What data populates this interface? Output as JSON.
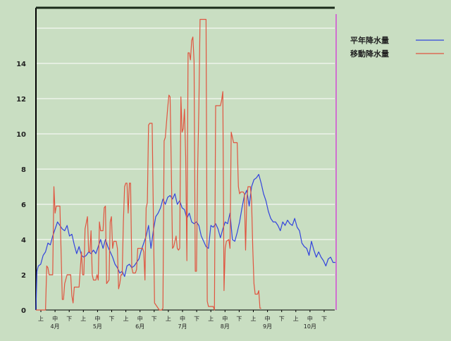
{
  "chart_data": {
    "type": "line",
    "title": "",
    "xlabel": "",
    "ylabel": "",
    "ylim": [
      0,
      16
    ],
    "grid": true,
    "legend_position": "top-right",
    "x_tick_labels": [
      "上",
      "中",
      "下",
      "上",
      "中",
      "下",
      "上",
      "中",
      "下",
      "上",
      "中",
      "下",
      "上",
      "中",
      "下",
      "上",
      "中",
      "下",
      "上",
      "中",
      "下"
    ],
    "month_labels": [
      "4月",
      "5月",
      "6月",
      "7月",
      "8月",
      "9月",
      "10月"
    ],
    "y_tick_labels": [
      "0",
      "2",
      "4",
      "6",
      "8",
      "10",
      "12",
      "14"
    ],
    "colors": {
      "background": "#c9dec2",
      "grid": "#ffffff",
      "axis": "#000000",
      "current_marker": "#d070d0"
    },
    "series": [
      {
        "name": "平年降水量",
        "color": "#3344dd",
        "points": [
          [
            0,
            0
          ],
          [
            0.8,
            2.2
          ],
          [
            2,
            2.5
          ],
          [
            4,
            2.6
          ],
          [
            6,
            3.1
          ],
          [
            8,
            3.3
          ],
          [
            10,
            3.8
          ],
          [
            12,
            3.7
          ],
          [
            14,
            4.2
          ],
          [
            16,
            4.6
          ],
          [
            18,
            5.0
          ],
          [
            20,
            4.8
          ],
          [
            22,
            4.6
          ],
          [
            24,
            4.5
          ],
          [
            26,
            4.8
          ],
          [
            28,
            4.2
          ],
          [
            30,
            4.3
          ],
          [
            32,
            3.7
          ],
          [
            34,
            3.2
          ],
          [
            36,
            3.6
          ],
          [
            38,
            3.1
          ],
          [
            40,
            3.0
          ],
          [
            42,
            3.1
          ],
          [
            44,
            3.3
          ],
          [
            46,
            3.2
          ],
          [
            48,
            3.4
          ],
          [
            50,
            3.2
          ],
          [
            52,
            3.6
          ],
          [
            54,
            4.0
          ],
          [
            56,
            3.5
          ],
          [
            58,
            4.0
          ],
          [
            60,
            3.6
          ],
          [
            62,
            3.3
          ],
          [
            64,
            3.0
          ],
          [
            66,
            2.6
          ],
          [
            68,
            2.4
          ],
          [
            70,
            2.1
          ],
          [
            72,
            2.2
          ],
          [
            74,
            1.9
          ],
          [
            76,
            2.5
          ],
          [
            78,
            2.6
          ],
          [
            80,
            2.4
          ],
          [
            82,
            2.5
          ],
          [
            84,
            2.7
          ],
          [
            86,
            2.9
          ],
          [
            88,
            3.4
          ],
          [
            90,
            3.8
          ],
          [
            92,
            4.2
          ],
          [
            94,
            4.8
          ],
          [
            96,
            3.5
          ],
          [
            98,
            4.5
          ],
          [
            100,
            5.3
          ],
          [
            102,
            5.5
          ],
          [
            104,
            5.8
          ],
          [
            106,
            6.3
          ],
          [
            108,
            6.0
          ],
          [
            110,
            6.4
          ],
          [
            112,
            6.5
          ],
          [
            114,
            6.3
          ],
          [
            116,
            6.6
          ],
          [
            118,
            6.0
          ],
          [
            120,
            6.2
          ],
          [
            122,
            5.8
          ],
          [
            124,
            5.7
          ],
          [
            126,
            5.2
          ],
          [
            128,
            5.5
          ],
          [
            130,
            5.0
          ],
          [
            132,
            4.9
          ],
          [
            134,
            5.0
          ],
          [
            136,
            4.8
          ],
          [
            138,
            4.2
          ],
          [
            140,
            3.9
          ],
          [
            142,
            3.6
          ],
          [
            144,
            3.5
          ],
          [
            146,
            4.8
          ],
          [
            148,
            4.7
          ],
          [
            150,
            4.9
          ],
          [
            152,
            4.6
          ],
          [
            154,
            4.1
          ],
          [
            156,
            4.6
          ],
          [
            158,
            5.0
          ],
          [
            160,
            4.9
          ],
          [
            162,
            5.5
          ],
          [
            164,
            4.0
          ],
          [
            166,
            3.9
          ],
          [
            168,
            4.4
          ],
          [
            170,
            5.0
          ],
          [
            172,
            5.8
          ],
          [
            174,
            6.5
          ],
          [
            176,
            6.8
          ],
          [
            178,
            5.9
          ],
          [
            180,
            7.0
          ],
          [
            182,
            7.4
          ],
          [
            184,
            7.5
          ],
          [
            186,
            7.7
          ],
          [
            188,
            7.2
          ],
          [
            190,
            6.6
          ],
          [
            192,
            6.2
          ],
          [
            194,
            5.6
          ],
          [
            196,
            5.2
          ],
          [
            198,
            5.0
          ],
          [
            200,
            5.0
          ],
          [
            202,
            4.8
          ],
          [
            204,
            4.5
          ],
          [
            206,
            5.0
          ],
          [
            208,
            4.8
          ],
          [
            210,
            5.1
          ],
          [
            212,
            4.9
          ],
          [
            214,
            4.8
          ],
          [
            216,
            5.2
          ],
          [
            218,
            4.7
          ],
          [
            220,
            4.5
          ],
          [
            222,
            3.8
          ],
          [
            224,
            3.6
          ],
          [
            226,
            3.5
          ],
          [
            228,
            3.1
          ],
          [
            230,
            3.9
          ],
          [
            232,
            3.4
          ],
          [
            234,
            3.0
          ],
          [
            236,
            3.3
          ],
          [
            238,
            3.0
          ],
          [
            240,
            2.8
          ],
          [
            242,
            2.5
          ],
          [
            244,
            2.9
          ],
          [
            246,
            3.0
          ],
          [
            248,
            2.7
          ],
          [
            250,
            2.7
          ]
        ]
      },
      {
        "name": "移動降水量",
        "color": "#e05540",
        "points": [
          [
            0,
            0
          ],
          [
            4,
            0
          ],
          [
            8,
            0
          ],
          [
            9,
            2.5
          ],
          [
            10,
            2.4
          ],
          [
            11,
            2.0
          ],
          [
            12,
            2.0
          ],
          [
            14,
            2.0
          ],
          [
            15,
            7.0
          ],
          [
            16,
            5.5
          ],
          [
            17,
            5.9
          ],
          [
            20,
            5.9
          ],
          [
            21,
            3.3
          ],
          [
            22,
            0.6
          ],
          [
            23,
            0.6
          ],
          [
            24,
            1.5
          ],
          [
            26,
            2.0
          ],
          [
            29,
            2.0
          ],
          [
            30,
            0.8
          ],
          [
            31,
            0.4
          ],
          [
            32,
            1.3
          ],
          [
            35,
            1.3
          ],
          [
            36,
            1.3
          ],
          [
            38,
            3.3
          ],
          [
            39,
            2.0
          ],
          [
            40,
            2.0
          ],
          [
            41,
            4.6
          ],
          [
            43,
            5.3
          ],
          [
            44,
            3.3
          ],
          [
            45,
            3.3
          ],
          [
            46,
            4.5
          ],
          [
            47,
            2.0
          ],
          [
            48,
            1.7
          ],
          [
            50,
            1.7
          ],
          [
            51,
            2.0
          ],
          [
            52,
            1.7
          ],
          [
            53,
            5.0
          ],
          [
            54,
            4.5
          ],
          [
            56,
            4.5
          ],
          [
            57,
            5.8
          ],
          [
            58,
            5.9
          ],
          [
            59,
            1.5
          ],
          [
            61,
            1.7
          ],
          [
            62,
            5.0
          ],
          [
            63,
            5.3
          ],
          [
            64,
            3.5
          ],
          [
            65,
            3.9
          ],
          [
            67,
            3.9
          ],
          [
            68,
            3.5
          ],
          [
            69,
            1.2
          ],
          [
            70,
            1.5
          ],
          [
            71,
            2.0
          ],
          [
            72,
            2.0
          ],
          [
            73,
            5.0
          ],
          [
            74,
            7.0
          ],
          [
            75,
            7.2
          ],
          [
            76,
            7.2
          ],
          [
            77,
            5.5
          ],
          [
            78,
            7.2
          ],
          [
            79,
            7.2
          ],
          [
            80,
            2.4
          ],
          [
            81,
            2.1
          ],
          [
            83,
            2.1
          ],
          [
            84,
            2.3
          ],
          [
            85,
            3.5
          ],
          [
            87,
            3.5
          ],
          [
            89,
            3.5
          ],
          [
            90,
            3.3
          ],
          [
            91,
            1.7
          ],
          [
            92,
            5.8
          ],
          [
            93,
            6.1
          ],
          [
            94,
            10.5
          ],
          [
            95,
            10.6
          ],
          [
            97,
            10.6
          ],
          [
            98,
            5.5
          ],
          [
            99,
            0.4
          ],
          [
            100,
            0.3
          ],
          [
            101,
            0.2
          ],
          [
            103,
            0
          ],
          [
            105,
            0
          ],
          [
            106,
            0.1
          ],
          [
            107,
            9.6
          ],
          [
            108,
            9.8
          ],
          [
            110,
            11.5
          ],
          [
            111,
            12.2
          ],
          [
            112,
            12.1
          ],
          [
            113,
            8.0
          ],
          [
            114,
            3.5
          ],
          [
            115,
            3.6
          ],
          [
            117,
            4.2
          ],
          [
            118,
            3.5
          ],
          [
            119,
            3.4
          ],
          [
            120,
            3.5
          ],
          [
            121,
            12.1
          ],
          [
            122,
            10.1
          ],
          [
            123,
            10.3
          ],
          [
            124,
            11.4
          ],
          [
            125,
            8.7
          ],
          [
            126,
            2.8
          ],
          [
            127,
            14.6
          ],
          [
            128,
            14.6
          ],
          [
            129,
            14.2
          ],
          [
            130,
            15.3
          ],
          [
            131,
            15.5
          ],
          [
            132,
            14.1
          ],
          [
            133,
            2.2
          ],
          [
            134,
            2.2
          ],
          [
            135,
            8.0
          ],
          [
            136,
            11.5
          ],
          [
            137,
            16.5
          ],
          [
            138,
            16.5
          ],
          [
            139,
            16.5
          ],
          [
            140,
            16.5
          ],
          [
            141,
            16.5
          ],
          [
            142,
            16.5
          ],
          [
            143,
            0.5
          ],
          [
            144,
            0.2
          ],
          [
            145,
            0.2
          ],
          [
            147,
            0.2
          ],
          [
            148,
            0.2
          ],
          [
            149,
            0
          ],
          [
            150,
            11.6
          ],
          [
            152,
            11.6
          ],
          [
            154,
            11.6
          ],
          [
            155,
            11.9
          ],
          [
            156,
            12.4
          ],
          [
            157,
            1.1
          ],
          [
            158,
            3.5
          ],
          [
            159,
            3.9
          ],
          [
            161,
            4.0
          ],
          [
            162,
            3.5
          ],
          [
            163,
            10.1
          ],
          [
            164,
            9.8
          ],
          [
            165,
            9.5
          ],
          [
            167,
            9.5
          ],
          [
            168,
            9.5
          ],
          [
            169,
            7.0
          ],
          [
            170,
            6.6
          ],
          [
            171,
            6.7
          ],
          [
            173,
            6.7
          ],
          [
            174,
            6.6
          ],
          [
            175,
            3.4
          ],
          [
            176,
            6.3
          ],
          [
            177,
            7.0
          ],
          [
            179,
            7.0
          ],
          [
            180,
            6.2
          ],
          [
            181,
            3.5
          ],
          [
            182,
            1.5
          ],
          [
            183,
            0.9
          ],
          [
            185,
            0.9
          ],
          [
            186,
            1.1
          ],
          [
            187,
            0.1
          ],
          [
            188,
            0.1
          ]
        ]
      }
    ]
  }
}
